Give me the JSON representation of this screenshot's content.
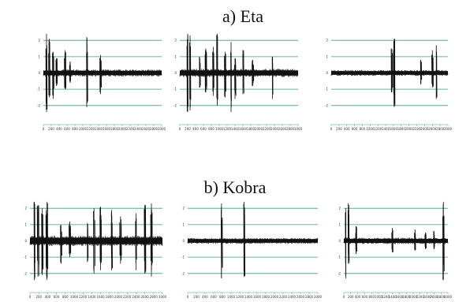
{
  "sections": [
    {
      "title": "a) Eta",
      "panels": [
        "a1",
        "a2",
        "a3"
      ]
    },
    {
      "title": "b) Kobra",
      "panels": [
        "b1",
        "b2",
        "b3"
      ]
    }
  ],
  "chart_data": [
    {
      "id": "a1",
      "type": "line",
      "section": "a) Eta",
      "ylim": [
        -2.3,
        2.3
      ],
      "yticks": [
        2,
        1,
        0,
        -1,
        -2
      ],
      "xlim": [
        0,
        3000
      ],
      "xticks": [
        0,
        200,
        400,
        600,
        800,
        1000,
        1200,
        1400,
        1600,
        1800,
        2000,
        2200,
        2400,
        2600,
        2800,
        3000
      ],
      "grid": true,
      "gridlines_y": [
        2,
        1,
        0,
        -1,
        -2
      ],
      "noise_level": 0.22,
      "spikes": [
        {
          "x": 80,
          "up": 2.4,
          "down": 2.4
        },
        {
          "x": 150,
          "up": 2.1,
          "down": 1.5
        },
        {
          "x": 250,
          "up": 1.3,
          "down": 1.6
        },
        {
          "x": 330,
          "up": 0.9,
          "down": 0.8
        },
        {
          "x": 550,
          "up": 1.4,
          "down": 1.0
        },
        {
          "x": 680,
          "up": 0.7,
          "down": 0.6
        },
        {
          "x": 1100,
          "up": 2.2,
          "down": 2.1
        },
        {
          "x": 1450,
          "up": 1.1,
          "down": 1.3
        }
      ]
    },
    {
      "id": "a2",
      "type": "line",
      "section": "a) Eta",
      "ylim": [
        -2.3,
        2.3
      ],
      "yticks": [
        2,
        1,
        0,
        -1,
        -2
      ],
      "xlim": [
        0,
        3000
      ],
      "xticks": [
        0,
        200,
        400,
        600,
        800,
        1000,
        1200,
        1400,
        1600,
        1800,
        2000,
        2200,
        2400,
        2600,
        2800,
        3000
      ],
      "grid": true,
      "gridlines_y": [
        2,
        1,
        0,
        -1,
        -2
      ],
      "noise_level": 0.25,
      "spikes": [
        {
          "x": 200,
          "up": 2.4,
          "down": 2.4
        },
        {
          "x": 260,
          "up": 2.3,
          "down": 2.3
        },
        {
          "x": 500,
          "up": 1.0,
          "down": 0.9
        },
        {
          "x": 660,
          "up": 1.5,
          "down": 1.2
        },
        {
          "x": 850,
          "up": 1.6,
          "down": 1.4
        },
        {
          "x": 950,
          "up": 2.4,
          "down": 2.0
        },
        {
          "x": 1150,
          "up": 1.3,
          "down": 1.5
        },
        {
          "x": 1300,
          "up": 1.9,
          "down": 2.4
        },
        {
          "x": 1400,
          "up": 0.9,
          "down": 1.6
        },
        {
          "x": 1600,
          "up": 1.4,
          "down": 1.3
        },
        {
          "x": 1850,
          "up": 0.8,
          "down": 0.8
        },
        {
          "x": 2350,
          "up": 1.0,
          "down": 1.6
        }
      ]
    },
    {
      "id": "a3",
      "type": "line",
      "section": "a) Eta",
      "ylim": [
        -2.3,
        2.3
      ],
      "yticks": [
        2,
        1,
        0,
        -1,
        -2
      ],
      "xlim": [
        0,
        3000
      ],
      "xticks": [
        0,
        200,
        400,
        600,
        800,
        1000,
        1200,
        1400,
        1600,
        1800,
        2000,
        2200,
        2400,
        2600,
        2800,
        3000
      ],
      "grid": true,
      "gridlines_y": [
        2,
        1,
        0,
        -1,
        -2
      ],
      "noise_level": 0.18,
      "spikes": [
        {
          "x": 1560,
          "up": 1.5,
          "down": 1.2
        },
        {
          "x": 1620,
          "up": 2.1,
          "down": 2.1
        },
        {
          "x": 2300,
          "up": 0.8,
          "down": 0.7
        },
        {
          "x": 2600,
          "up": 1.4,
          "down": 0.9
        },
        {
          "x": 2700,
          "up": 1.7,
          "down": 1.6
        }
      ]
    },
    {
      "id": "b1",
      "type": "line",
      "section": "b) Kobra",
      "ylim": [
        -2.3,
        2.3
      ],
      "yticks": [
        2,
        1,
        0,
        -1,
        -2
      ],
      "xlim": [
        0,
        3000
      ],
      "xticks": [
        0,
        200,
        400,
        600,
        800,
        1000,
        1200,
        1400,
        1600,
        1800,
        2000,
        2200,
        2400,
        2600,
        2800,
        3000
      ],
      "grid": true,
      "gridlines_y": [
        2,
        1,
        0,
        -1,
        -2
      ],
      "noise_level": 0.32,
      "spikes": [
        {
          "x": 100,
          "up": 2.4,
          "down": 2.4
        },
        {
          "x": 180,
          "up": 2.2,
          "down": 2.2
        },
        {
          "x": 280,
          "up": 2.0,
          "down": 2.1
        },
        {
          "x": 380,
          "up": 2.4,
          "down": 2.4
        },
        {
          "x": 700,
          "up": 1.0,
          "down": 1.4
        },
        {
          "x": 900,
          "up": 1.2,
          "down": 1.0
        },
        {
          "x": 1300,
          "up": 1.1,
          "down": 1.3
        },
        {
          "x": 1450,
          "up": 2.0,
          "down": 2.0
        },
        {
          "x": 1600,
          "up": 2.1,
          "down": 1.8
        },
        {
          "x": 1850,
          "up": 1.9,
          "down": 1.8
        },
        {
          "x": 2050,
          "up": 1.5,
          "down": 1.4
        },
        {
          "x": 2400,
          "up": 1.7,
          "down": 1.8
        },
        {
          "x": 2600,
          "up": 2.2,
          "down": 2.0
        },
        {
          "x": 2750,
          "up": 2.3,
          "down": 2.2
        }
      ]
    },
    {
      "id": "b2",
      "type": "line",
      "section": "b) Kobra",
      "ylim": [
        -2.3,
        2.3
      ],
      "yticks": [
        2,
        1,
        0,
        -1,
        -2
      ],
      "xlim": [
        0,
        3000
      ],
      "xticks": [
        0,
        200,
        400,
        600,
        800,
        1000,
        1200,
        1400,
        1600,
        1800,
        2000,
        2200,
        2400,
        2600,
        2800,
        3000
      ],
      "grid": true,
      "gridlines_y": [
        2,
        1,
        0,
        -1,
        -2
      ],
      "noise_level": 0.18,
      "spikes": [
        {
          "x": 780,
          "up": 2.3,
          "down": 2.3
        },
        {
          "x": 1300,
          "up": 2.4,
          "down": 2.2
        }
      ]
    },
    {
      "id": "b3",
      "type": "line",
      "section": "b) Kobra",
      "ylim": [
        -2.3,
        2.3
      ],
      "yticks": [
        2,
        1,
        0,
        -1,
        -2
      ],
      "xlim": [
        0,
        3000
      ],
      "xticks": [
        0,
        200,
        400,
        600,
        800,
        1000,
        1200,
        1400,
        1600,
        1800,
        2000,
        2200,
        2400,
        2600,
        2800,
        3000
      ],
      "grid": true,
      "gridlines_y": [
        2,
        1,
        0,
        -1,
        -2
      ],
      "noise_level": 0.2,
      "spikes": [
        {
          "x": 60,
          "up": 2.0,
          "down": 2.3
        },
        {
          "x": 130,
          "up": 2.3,
          "down": 1.4
        },
        {
          "x": 350,
          "up": 0.9,
          "down": 0.8
        },
        {
          "x": 1400,
          "up": 0.8,
          "down": 0.7
        },
        {
          "x": 2050,
          "up": 0.7,
          "down": 0.6
        },
        {
          "x": 2350,
          "up": 0.5,
          "down": 0.5
        },
        {
          "x": 2600,
          "up": 0.6,
          "down": 0.5
        },
        {
          "x": 2870,
          "up": 2.4,
          "down": 2.4
        }
      ]
    }
  ]
}
